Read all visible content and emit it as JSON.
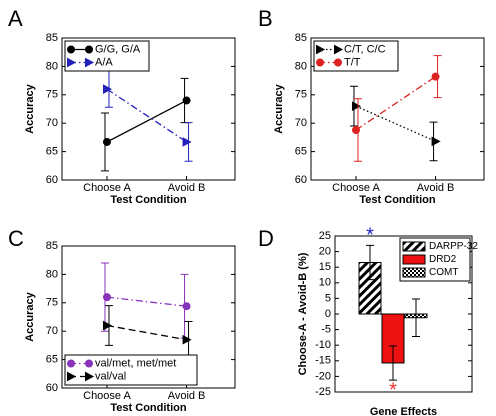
{
  "chart_data": [
    {
      "panel": "A",
      "type": "line",
      "xlabel": "Test Condition",
      "ylabel": "Accuracy",
      "categories": [
        "Choose A",
        "Avoid B"
      ],
      "ylim": [
        60,
        85
      ],
      "yticks": [
        60,
        65,
        70,
        75,
        80,
        85
      ],
      "legend": "upper left",
      "series": [
        {
          "name": "G/G, G/A",
          "color": "#000000",
          "marker": "circle",
          "dash": "solid",
          "values": [
            66.7,
            74
          ],
          "errors": [
            5.1,
            3.9
          ]
        },
        {
          "name": "A/A",
          "color": "#2222bb",
          "marker": "triangle",
          "dash": "dash-dot",
          "values": [
            76,
            66.7
          ],
          "errors": [
            3.2,
            3.4
          ]
        }
      ]
    },
    {
      "panel": "B",
      "type": "line",
      "xlabel": "Test Condition",
      "ylabel": "Accuracy",
      "categories": [
        "Choose A",
        "Avoid B"
      ],
      "ylim": [
        60,
        85
      ],
      "yticks": [
        60,
        65,
        70,
        75,
        80,
        85
      ],
      "legend": "upper left",
      "series": [
        {
          "name": "C/T, C/C",
          "color": "#000000",
          "marker": "triangle",
          "dash": "dotted",
          "values": [
            73,
            66.8
          ],
          "errors": [
            3.5,
            3.4
          ]
        },
        {
          "name": "T/T",
          "color": "#dd2222",
          "marker": "circle",
          "dash": "dash-dot",
          "values": [
            68.8,
            78.2
          ],
          "errors": [
            5.5,
            3.7
          ]
        }
      ]
    },
    {
      "panel": "C",
      "type": "line",
      "xlabel": "Test Condition",
      "ylabel": "Accuracy",
      "categories": [
        "Choose A",
        "Avoid B"
      ],
      "ylim": [
        60,
        85
      ],
      "yticks": [
        60,
        65,
        70,
        75,
        80,
        85
      ],
      "legend": "lower left",
      "series": [
        {
          "name": "val/met, met/met",
          "color": "#8833bb",
          "marker": "circle",
          "dash": "dash-dot",
          "values": [
            76,
            74.4
          ],
          "errors": [
            6,
            5.6
          ]
        },
        {
          "name": "val/val",
          "color": "#000000",
          "marker": "triangle",
          "dash": "dashed",
          "values": [
            71,
            68.5
          ],
          "errors": [
            3.5,
            3.2
          ]
        }
      ]
    },
    {
      "panel": "D",
      "type": "bar",
      "xlabel": "Gene Effects",
      "ylabel": "Choose-A - Avoid-B (%)",
      "ylim": [
        -25,
        25
      ],
      "yticks": [
        -25,
        -20,
        -15,
        -10,
        -5,
        0,
        5,
        10,
        15,
        20,
        25
      ],
      "legend": "upper right",
      "series": [
        {
          "name": "DARPP-32",
          "color": "#000000",
          "pattern": "stripes",
          "value": 16.5,
          "error": 5.5,
          "annotation": "*",
          "annotation_color": "#2222cc"
        },
        {
          "name": "DRD2",
          "color": "#ee1111",
          "pattern": "solid",
          "value": -15.7,
          "error": 5.5,
          "annotation": "*",
          "annotation_color": "#ee3333"
        },
        {
          "name": "COMT",
          "color": "#000000",
          "pattern": "checker",
          "value": -1.2,
          "error": 6
        }
      ]
    }
  ]
}
